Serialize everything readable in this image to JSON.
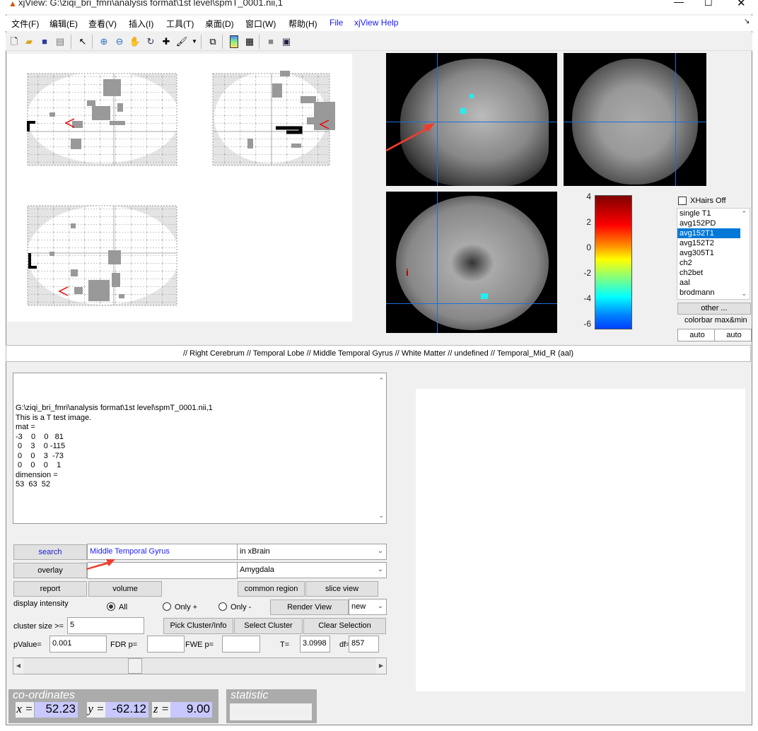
{
  "window": {
    "title": "xjView: G:\\ziqi_bri_fmri\\analysis format\\1st level\\spmT_0001.nii,1"
  },
  "menu": [
    "文件(F)",
    "编辑(E)",
    "查看(V)",
    "插入(I)",
    "工具(T)",
    "桌面(D)",
    "窗口(W)",
    "帮助(H)",
    "File",
    "xjView Help"
  ],
  "toolbar": [
    "new-file",
    "open-folder",
    "save",
    "print",
    "pointer",
    "zoom-in",
    "zoom-out",
    "pan-hand",
    "rotate-3d",
    "data-cursor",
    "brush",
    "link-plot",
    "colorbar",
    "legend",
    "hide-plot-tools",
    "show-plot-tools"
  ],
  "viewer": {
    "xhairs_label": "XHairs Off",
    "xhairs_checked": false,
    "templates": [
      "single T1",
      "avg152PD",
      "avg152T1",
      "avg152T2",
      "avg305T1",
      "ch2",
      "ch2bet",
      "aal",
      "brodmann"
    ],
    "selected_template": "avg152T1",
    "other_button": "other ...",
    "colorbar_label": "colorbar max&min",
    "auto_max": "auto",
    "auto_min": "auto",
    "colorbar_ticks": [
      "4",
      "2",
      "0",
      "-2",
      "-4",
      "-6"
    ],
    "crosshair_color": "#1e6fd8",
    "axial_marker": "i"
  },
  "region_label": "// Right Cerebrum // Temporal Lobe // Middle Temporal Gyrus // White Matter // undefined // Temporal_Mid_R (aal)",
  "info_text": [
    "G:\\ziqi_bri_fmri\\analysis format\\1st level\\spmT_0001.nii,1",
    "This is a T test image.",
    "mat =",
    "-3    0    0   81",
    " 0    3    0 -115",
    " 0    0    3  -73",
    " 0    0    0    1",
    "dimension =",
    "53  63  52"
  ],
  "controls": {
    "search_button": "search",
    "search_value": "Middle Temporal Gyrus",
    "search_scope": "in xBrain",
    "overlay_button": "overlay",
    "overlay_value": "",
    "overlay_region": "Amygdala",
    "report_button": "report",
    "volume_button": "volume",
    "common_region_button": "common region",
    "slice_view_button": "slice view",
    "display_intensity_label": "display intensity",
    "radio_all": "All",
    "radio_pos": "Only +",
    "radio_neg": "Only -",
    "radio_selected": "All",
    "render_view_button": "Render View",
    "render_mode": "new",
    "cluster_size_label": "cluster size >=",
    "cluster_size": "5",
    "pick_cluster_button": "Pick Cluster/Info",
    "select_cluster_button": "Select Cluster",
    "clear_selection_button": "Clear Selection",
    "pvalue_label": "pValue=",
    "pvalue": "0.001",
    "fdr_label": "FDR p=",
    "fdr": "",
    "fwe_label": "FWE p=",
    "fwe": "",
    "t_label": "T=",
    "t_value": "3.0998",
    "df_label": "df=",
    "df_value": "857",
    "slider_value_fraction": 0.31
  },
  "coordinates": {
    "header": "co-ordinates",
    "x_label": "x =",
    "x": "52.23",
    "y_label": "y =",
    "y": "-62.12",
    "z_label": "z =",
    "z": "9.00"
  },
  "statistic": {
    "header": "statistic",
    "value": ""
  },
  "annotation_arrow_color": "#f03c2e"
}
